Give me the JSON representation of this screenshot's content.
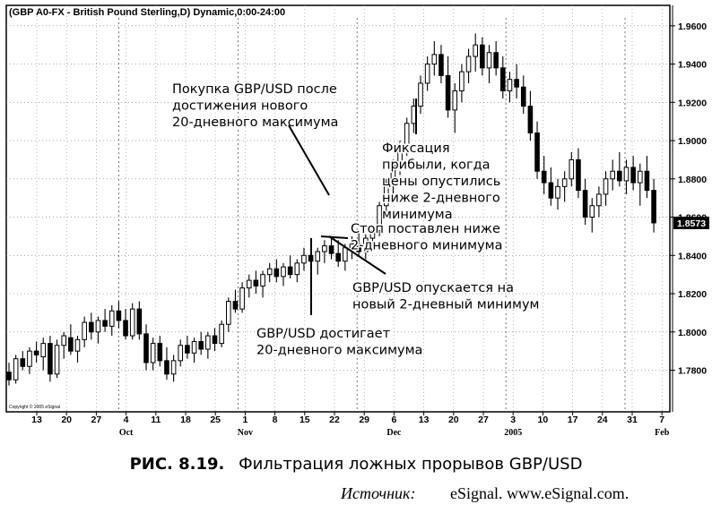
{
  "chart_data": {
    "type": "candlestick",
    "title": "(GBP A0-FX - British Pound Sterling,D) Dynamic,0:00-24:00",
    "copyright": "Copyright © 2005 eSignal",
    "last_price_label": "1.8573",
    "ylim": [
      1.762,
      1.966
    ],
    "y_ticks": [
      {
        "value": 1.96,
        "label": "1.9600"
      },
      {
        "value": 1.94,
        "label": "1.9400"
      },
      {
        "value": 1.92,
        "label": "1.9200"
      },
      {
        "value": 1.9,
        "label": "1.9000"
      },
      {
        "value": 1.88,
        "label": "1.8800"
      },
      {
        "value": 1.86,
        "label": "1.8600"
      },
      {
        "value": 1.84,
        "label": "1.8400"
      },
      {
        "value": 1.82,
        "label": "1.8200"
      },
      {
        "value": 1.8,
        "label": "1.8000"
      },
      {
        "value": 1.78,
        "label": "1.7800"
      }
    ],
    "x_ticks": [
      "13",
      "20",
      "27",
      "4",
      "11",
      "18",
      "25",
      "1",
      "8",
      "15",
      "22",
      "29",
      "6",
      "13",
      "20",
      "27",
      "3",
      "10",
      "17",
      "24",
      "31",
      "7"
    ],
    "month_labels": [
      {
        "tick_index": 3,
        "label": "Oct"
      },
      {
        "tick_index": 7,
        "label": "Nov"
      },
      {
        "tick_index": 12,
        "label": "Dec"
      },
      {
        "tick_index": 16,
        "label": "2005"
      },
      {
        "tick_index": 21,
        "label": "Feb"
      }
    ],
    "month_separator_ticks": [
      3,
      7,
      11,
      16,
      20
    ],
    "candles_ohlc": [
      [
        1.779,
        1.784,
        1.772,
        1.775
      ],
      [
        1.775,
        1.788,
        1.773,
        1.786
      ],
      [
        1.786,
        1.79,
        1.78,
        1.782
      ],
      [
        1.782,
        1.792,
        1.778,
        1.79
      ],
      [
        1.79,
        1.795,
        1.784,
        1.788
      ],
      [
        1.787,
        1.797,
        1.78,
        1.794
      ],
      [
        1.794,
        1.798,
        1.774,
        1.778
      ],
      [
        1.778,
        1.796,
        1.776,
        1.793
      ],
      [
        1.793,
        1.8,
        1.786,
        1.798
      ],
      [
        1.797,
        1.804,
        1.788,
        1.79
      ],
      [
        1.79,
        1.798,
        1.784,
        1.796
      ],
      [
        1.796,
        1.808,
        1.792,
        1.805
      ],
      [
        1.805,
        1.81,
        1.796,
        1.8
      ],
      [
        1.8,
        1.808,
        1.794,
        1.806
      ],
      [
        1.806,
        1.812,
        1.8,
        1.803
      ],
      [
        1.803,
        1.814,
        1.798,
        1.811
      ],
      [
        1.811,
        1.816,
        1.802,
        1.806
      ],
      [
        1.806,
        1.812,
        1.796,
        1.798
      ],
      [
        1.798,
        1.815,
        1.796,
        1.812
      ],
      [
        1.812,
        1.816,
        1.796,
        1.799
      ],
      [
        1.799,
        1.804,
        1.78,
        1.784
      ],
      [
        1.784,
        1.797,
        1.78,
        1.794
      ],
      [
        1.794,
        1.798,
        1.782,
        1.785
      ],
      [
        1.785,
        1.792,
        1.775,
        1.778
      ],
      [
        1.778,
        1.788,
        1.774,
        1.785
      ],
      [
        1.785,
        1.796,
        1.782,
        1.793
      ],
      [
        1.793,
        1.798,
        1.786,
        1.789
      ],
      [
        1.789,
        1.797,
        1.784,
        1.795
      ],
      [
        1.795,
        1.8,
        1.788,
        1.791
      ],
      [
        1.791,
        1.8,
        1.786,
        1.798
      ],
      [
        1.798,
        1.802,
        1.79,
        1.794
      ],
      [
        1.794,
        1.806,
        1.792,
        1.804
      ],
      [
        1.804,
        1.818,
        1.8,
        1.816
      ],
      [
        1.816,
        1.822,
        1.81,
        1.812
      ],
      [
        1.812,
        1.826,
        1.81,
        1.823
      ],
      [
        1.823,
        1.83,
        1.818,
        1.827
      ],
      [
        1.827,
        1.832,
        1.82,
        1.824
      ],
      [
        1.824,
        1.832,
        1.818,
        1.83
      ],
      [
        1.83,
        1.836,
        1.826,
        1.833
      ],
      [
        1.833,
        1.838,
        1.826,
        1.829
      ],
      [
        1.829,
        1.836,
        1.824,
        1.834
      ],
      [
        1.834,
        1.84,
        1.828,
        1.83
      ],
      [
        1.83,
        1.838,
        1.826,
        1.836
      ],
      [
        1.836,
        1.844,
        1.832,
        1.84
      ],
      [
        1.84,
        1.846,
        1.834,
        1.837
      ],
      [
        1.837,
        1.844,
        1.83,
        1.842
      ],
      [
        1.842,
        1.848,
        1.836,
        1.845
      ],
      [
        1.845,
        1.85,
        1.838,
        1.841
      ],
      [
        1.841,
        1.848,
        1.834,
        1.837
      ],
      [
        1.837,
        1.846,
        1.832,
        1.844
      ],
      [
        1.844,
        1.85,
        1.838,
        1.846
      ],
      [
        1.846,
        1.852,
        1.84,
        1.842
      ],
      [
        1.842,
        1.851,
        1.838,
        1.849
      ],
      [
        1.849,
        1.856,
        1.846,
        1.853
      ],
      [
        1.853,
        1.868,
        1.85,
        1.866
      ],
      [
        1.866,
        1.88,
        1.862,
        1.878
      ],
      [
        1.878,
        1.89,
        1.872,
        1.887
      ],
      [
        1.887,
        1.9,
        1.882,
        1.897
      ],
      [
        1.897,
        1.912,
        1.892,
        1.909
      ],
      [
        1.909,
        1.922,
        1.904,
        1.918
      ],
      [
        1.918,
        1.934,
        1.914,
        1.93
      ],
      [
        1.93,
        1.944,
        1.926,
        1.94
      ],
      [
        1.94,
        1.952,
        1.934,
        1.945
      ],
      [
        1.945,
        1.95,
        1.93,
        1.934
      ],
      [
        1.934,
        1.944,
        1.912,
        1.916
      ],
      [
        1.916,
        1.93,
        1.904,
        1.926
      ],
      [
        1.926,
        1.94,
        1.92,
        1.936
      ],
      [
        1.936,
        1.948,
        1.93,
        1.944
      ],
      [
        1.944,
        1.956,
        1.936,
        1.95
      ],
      [
        1.95,
        1.954,
        1.934,
        1.938
      ],
      [
        1.938,
        1.95,
        1.93,
        1.946
      ],
      [
        1.946,
        1.952,
        1.934,
        1.938
      ],
      [
        1.938,
        1.944,
        1.922,
        1.926
      ],
      [
        1.926,
        1.936,
        1.92,
        1.932
      ],
      [
        1.932,
        1.94,
        1.922,
        1.928
      ],
      [
        1.928,
        1.934,
        1.914,
        1.918
      ],
      [
        1.918,
        1.926,
        1.9,
        1.904
      ],
      [
        1.904,
        1.91,
        1.88,
        1.884
      ],
      [
        1.884,
        1.892,
        1.872,
        1.878
      ],
      [
        1.878,
        1.886,
        1.866,
        1.87
      ],
      [
        1.87,
        1.88,
        1.864,
        1.876
      ],
      [
        1.876,
        1.884,
        1.868,
        1.88
      ],
      [
        1.88,
        1.894,
        1.876,
        1.89
      ],
      [
        1.89,
        1.896,
        1.87,
        1.874
      ],
      [
        1.874,
        1.88,
        1.856,
        1.86
      ],
      [
        1.86,
        1.87,
        1.852,
        1.866
      ],
      [
        1.866,
        1.876,
        1.86,
        1.872
      ],
      [
        1.872,
        1.884,
        1.866,
        1.88
      ],
      [
        1.88,
        1.89,
        1.874,
        1.884
      ],
      [
        1.884,
        1.894,
        1.876,
        1.879
      ],
      [
        1.879,
        1.89,
        1.872,
        1.886
      ],
      [
        1.886,
        1.892,
        1.874,
        1.878
      ],
      [
        1.878,
        1.888,
        1.866,
        1.884
      ],
      [
        1.884,
        1.892,
        1.87,
        1.874
      ],
      [
        1.874,
        1.88,
        1.852,
        1.857
      ]
    ],
    "annotations": [
      {
        "lines": [
          "Покупка GBP/USD после",
          "достижения нового",
          "20-дневного максимума"
        ]
      },
      {
        "lines": [
          "Фиксация",
          "прибыли, когда",
          "цены опустились",
          "ниже 2-дневного",
          "минимума"
        ]
      },
      {
        "lines": [
          "Стоп поставлен ниже",
          "2-дневного минимума"
        ]
      },
      {
        "lines": [
          "GBP/USD опускается на",
          "новый 2-дневный минимум"
        ]
      },
      {
        "lines": [
          "GBP/USD достигает",
          "20-дневного максимума"
        ]
      }
    ]
  },
  "caption": {
    "figure_number": "РИС. 8.19.",
    "text": "Фильтрация ложных прорывов GBP/USD"
  },
  "source": {
    "label": "Источник:",
    "text": "eSignal. www.eSignal.com."
  }
}
